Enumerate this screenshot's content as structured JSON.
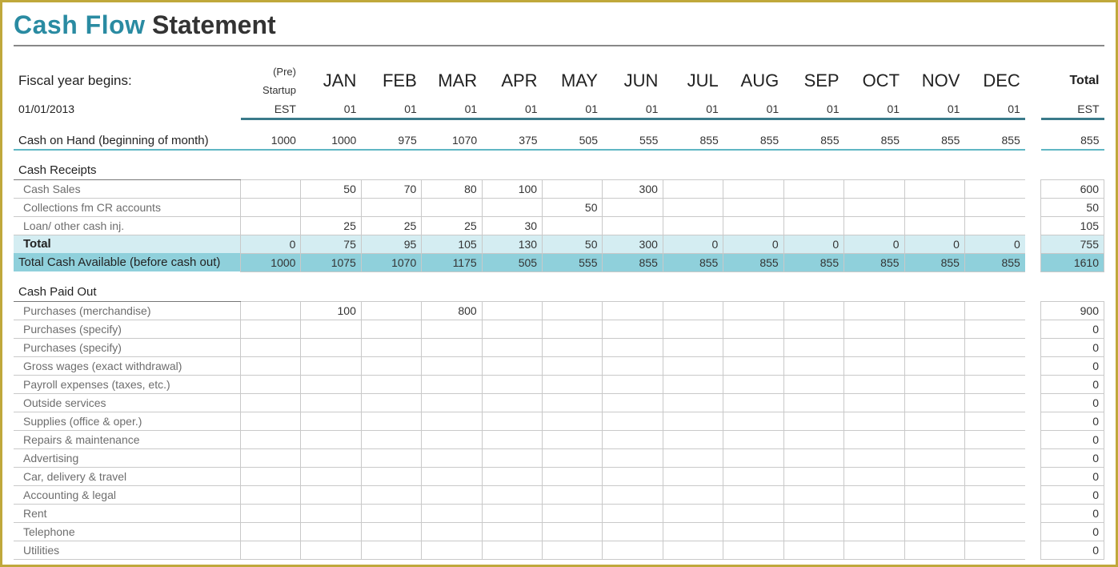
{
  "title": {
    "strong": "Cash Flow",
    "light": "Statement"
  },
  "fiscal": {
    "label": "Fiscal year begins:",
    "date": "01/01/2013"
  },
  "header": {
    "pre_lines": [
      "(Pre)",
      "Startup",
      "EST"
    ],
    "months": [
      "JAN",
      "FEB",
      "MAR",
      "APR",
      "MAY",
      "JUN",
      "JUL",
      "AUG",
      "SEP",
      "OCT",
      "NOV",
      "DEC"
    ],
    "sub": "01",
    "total_label": "Total",
    "total_sub": "EST"
  },
  "colors": {
    "border_outer": "#c0a83b",
    "accent_teal": "#2a8ba2",
    "rule_teal": "#3a7a8a",
    "hl_light": "#d4edf2",
    "hl_dark": "#8fd0db",
    "grid": "#c9c9c9",
    "text_muted": "#6d6d6d"
  },
  "rows": {
    "cash_on_hand": {
      "label": "Cash on Hand (beginning of month)",
      "values": [
        1000,
        1000,
        975,
        1070,
        375,
        505,
        555,
        855,
        855,
        855,
        855,
        855,
        855
      ],
      "total": 855
    },
    "receipts_head": "Cash Receipts",
    "receipts": [
      {
        "label": "Cash Sales",
        "values": [
          "",
          50,
          70,
          80,
          100,
          "",
          300,
          "",
          "",
          "",
          "",
          "",
          ""
        ],
        "total": 600
      },
      {
        "label": "Collections fm CR accounts",
        "values": [
          "",
          "",
          "",
          "",
          "",
          50,
          "",
          "",
          "",
          "",
          "",
          "",
          ""
        ],
        "total": 50
      },
      {
        "label": "Loan/ other cash inj.",
        "values": [
          "",
          25,
          25,
          25,
          30,
          "",
          "",
          "",
          "",
          "",
          "",
          "",
          ""
        ],
        "total": 105
      }
    ],
    "receipts_total": {
      "label": "Total",
      "values": [
        0,
        75,
        95,
        105,
        130,
        50,
        300,
        0,
        0,
        0,
        0,
        0,
        0
      ],
      "total": 755
    },
    "cash_available": {
      "label": "Total Cash Available (before cash out)",
      "values": [
        1000,
        1075,
        1070,
        1175,
        505,
        555,
        855,
        855,
        855,
        855,
        855,
        855,
        855
      ],
      "total": 1610
    },
    "paidout_head": "Cash Paid Out",
    "paidout": [
      {
        "label": "Purchases (merchandise)",
        "values": [
          "",
          100,
          "",
          800,
          "",
          "",
          "",
          "",
          "",
          "",
          "",
          "",
          ""
        ],
        "total": 900
      },
      {
        "label": "Purchases (specify)",
        "values": [
          "",
          "",
          "",
          "",
          "",
          "",
          "",
          "",
          "",
          "",
          "",
          "",
          ""
        ],
        "total": 0
      },
      {
        "label": "Purchases (specify)",
        "values": [
          "",
          "",
          "",
          "",
          "",
          "",
          "",
          "",
          "",
          "",
          "",
          "",
          ""
        ],
        "total": 0
      },
      {
        "label": "Gross wages (exact withdrawal)",
        "values": [
          "",
          "",
          "",
          "",
          "",
          "",
          "",
          "",
          "",
          "",
          "",
          "",
          ""
        ],
        "total": 0
      },
      {
        "label": "Payroll expenses (taxes, etc.)",
        "values": [
          "",
          "",
          "",
          "",
          "",
          "",
          "",
          "",
          "",
          "",
          "",
          "",
          ""
        ],
        "total": 0
      },
      {
        "label": "Outside services",
        "values": [
          "",
          "",
          "",
          "",
          "",
          "",
          "",
          "",
          "",
          "",
          "",
          "",
          ""
        ],
        "total": 0
      },
      {
        "label": "Supplies (office & oper.)",
        "values": [
          "",
          "",
          "",
          "",
          "",
          "",
          "",
          "",
          "",
          "",
          "",
          "",
          ""
        ],
        "total": 0
      },
      {
        "label": "Repairs & maintenance",
        "values": [
          "",
          "",
          "",
          "",
          "",
          "",
          "",
          "",
          "",
          "",
          "",
          "",
          ""
        ],
        "total": 0
      },
      {
        "label": "Advertising",
        "values": [
          "",
          "",
          "",
          "",
          "",
          "",
          "",
          "",
          "",
          "",
          "",
          "",
          ""
        ],
        "total": 0
      },
      {
        "label": "Car, delivery & travel",
        "values": [
          "",
          "",
          "",
          "",
          "",
          "",
          "",
          "",
          "",
          "",
          "",
          "",
          ""
        ],
        "total": 0
      },
      {
        "label": "Accounting & legal",
        "values": [
          "",
          "",
          "",
          "",
          "",
          "",
          "",
          "",
          "",
          "",
          "",
          "",
          ""
        ],
        "total": 0
      },
      {
        "label": "Rent",
        "values": [
          "",
          "",
          "",
          "",
          "",
          "",
          "",
          "",
          "",
          "",
          "",
          "",
          ""
        ],
        "total": 0
      },
      {
        "label": "Telephone",
        "values": [
          "",
          "",
          "",
          "",
          "",
          "",
          "",
          "",
          "",
          "",
          "",
          "",
          ""
        ],
        "total": 0
      },
      {
        "label": "Utilities",
        "values": [
          "",
          "",
          "",
          "",
          "",
          "",
          "",
          "",
          "",
          "",
          "",
          "",
          ""
        ],
        "total": 0
      }
    ]
  }
}
